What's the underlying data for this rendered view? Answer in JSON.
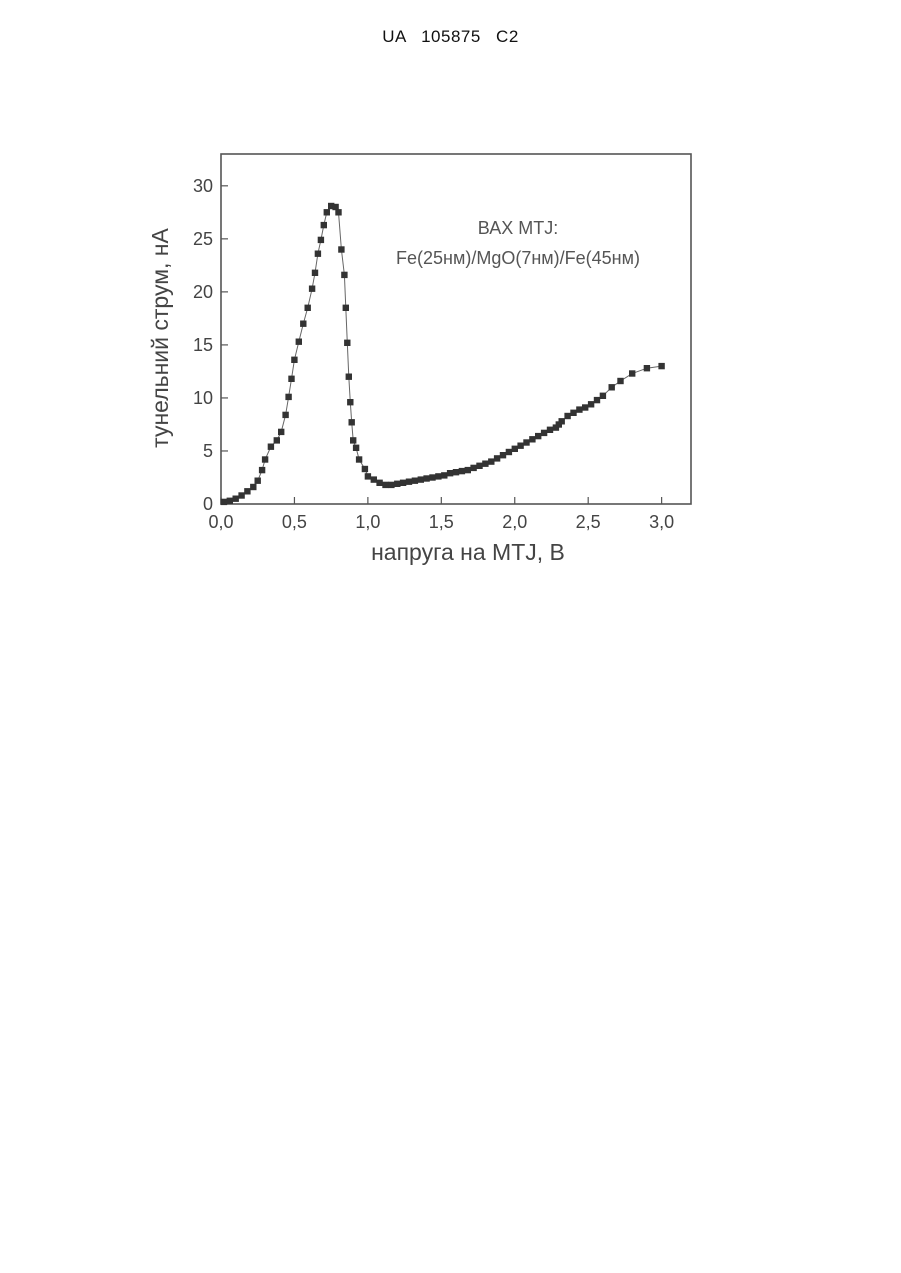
{
  "document": {
    "header": "UA 105875 C2"
  },
  "chart_data": {
    "type": "line",
    "xlabel": "напруга на MTJ, В",
    "ylabel": "тунельний струм, нА",
    "xlim": [
      0,
      3.2
    ],
    "ylim": [
      0,
      33
    ],
    "xticks": [
      "0,0",
      "0,5",
      "1,0",
      "1,5",
      "2,0",
      "2,5",
      "3,0"
    ],
    "yticks": [
      "0",
      "5",
      "10",
      "15",
      "20",
      "25",
      "30"
    ],
    "annotation": [
      "ВАХ MTJ:",
      "Fe(25нм)/MgO(7нм)/Fe(45нм)"
    ],
    "grid": false,
    "marker": "square",
    "color": "#333333",
    "series": [
      {
        "x": [
          0.02,
          0.06,
          0.1,
          0.14,
          0.18,
          0.22,
          0.25,
          0.28,
          0.3,
          0.34,
          0.38,
          0.41,
          0.44,
          0.46,
          0.48,
          0.5,
          0.53,
          0.56,
          0.59,
          0.62,
          0.64,
          0.66,
          0.68,
          0.7,
          0.72,
          0.75,
          0.78,
          0.8,
          0.82,
          0.84,
          0.85,
          0.86,
          0.87,
          0.88,
          0.89,
          0.9,
          0.92,
          0.94,
          0.98,
          1.0,
          1.04,
          1.08,
          1.12,
          1.16,
          1.2,
          1.24,
          1.28,
          1.32,
          1.36,
          1.4,
          1.44,
          1.48,
          1.52,
          1.56,
          1.6,
          1.64,
          1.68,
          1.72,
          1.76,
          1.8,
          1.84,
          1.88,
          1.92,
          1.96,
          2.0,
          2.04,
          2.08,
          2.12,
          2.16,
          2.2,
          2.24,
          2.28,
          2.3,
          2.32,
          2.36,
          2.4,
          2.44,
          2.48,
          2.52,
          2.56,
          2.6,
          2.66,
          2.72,
          2.8,
          2.9,
          3.0
        ],
        "y": [
          0.2,
          0.3,
          0.5,
          0.8,
          1.2,
          1.6,
          2.2,
          3.2,
          4.2,
          5.4,
          6.0,
          6.8,
          8.4,
          10.1,
          11.8,
          13.6,
          15.3,
          17.0,
          18.5,
          20.3,
          21.8,
          23.6,
          24.9,
          26.3,
          27.5,
          28.1,
          28.0,
          27.5,
          24.0,
          21.6,
          18.5,
          15.2,
          12.0,
          9.6,
          7.7,
          6.0,
          5.3,
          4.2,
          3.3,
          2.6,
          2.3,
          2.0,
          1.8,
          1.8,
          1.9,
          2.0,
          2.1,
          2.2,
          2.3,
          2.4,
          2.5,
          2.6,
          2.7,
          2.9,
          3.0,
          3.1,
          3.2,
          3.4,
          3.6,
          3.8,
          4.0,
          4.3,
          4.6,
          4.9,
          5.2,
          5.5,
          5.8,
          6.1,
          6.4,
          6.7,
          7.0,
          7.2,
          7.5,
          7.8,
          8.3,
          8.6,
          8.9,
          9.1,
          9.4,
          9.8,
          10.2,
          11.0,
          11.6,
          12.3,
          12.8,
          13.0
        ]
      }
    ]
  }
}
